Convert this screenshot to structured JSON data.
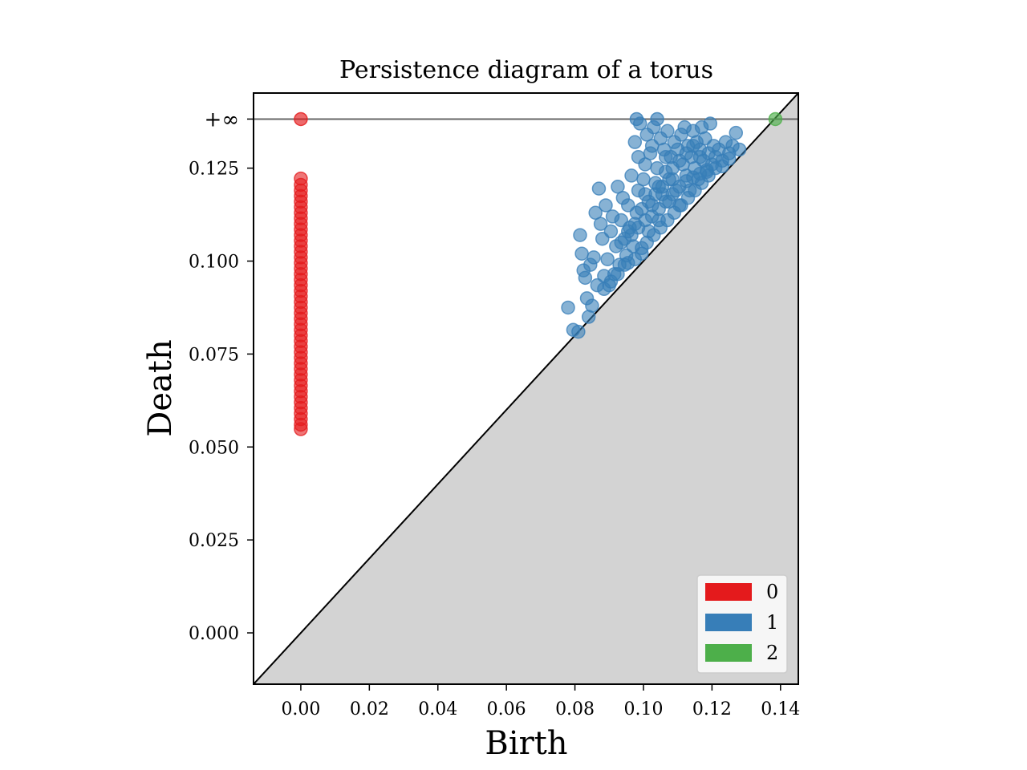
{
  "chart_data": {
    "type": "scatter",
    "title": "Persistence diagram of a torus",
    "xlabel": "Birth",
    "ylabel": "Death",
    "xlim": [
      -0.0138,
      0.1452
    ],
    "ylim": [
      -0.0138,
      0.1452
    ],
    "x_ticks": [
      0.0,
      0.02,
      0.04,
      0.06,
      0.08,
      0.1,
      0.12,
      0.14
    ],
    "x_tick_labels": [
      "0.00",
      "0.02",
      "0.04",
      "0.06",
      "0.08",
      "0.10",
      "0.12",
      "0.14"
    ],
    "y_ticks": [
      0.0,
      0.025,
      0.05,
      0.075,
      0.1,
      0.125
    ],
    "y_tick_labels": [
      "0.000",
      "0.025",
      "0.050",
      "0.075",
      "0.100",
      "0.125"
    ],
    "infinity_label": "+∞",
    "infinity_level": 0.1382,
    "diagonal": true,
    "grid": false,
    "legend_position": "bottom-right",
    "series": [
      {
        "name": "0",
        "color": "#e41a1c",
        "points": [
          [
            0.0,
            0.0548
          ],
          [
            0.0,
            0.056
          ],
          [
            0.0,
            0.0575
          ],
          [
            0.0,
            0.059
          ],
          [
            0.0,
            0.0605
          ],
          [
            0.0,
            0.062
          ],
          [
            0.0,
            0.0635
          ],
          [
            0.0,
            0.065
          ],
          [
            0.0,
            0.0665
          ],
          [
            0.0,
            0.068
          ],
          [
            0.0,
            0.0695
          ],
          [
            0.0,
            0.071
          ],
          [
            0.0,
            0.0725
          ],
          [
            0.0,
            0.074
          ],
          [
            0.0,
            0.0755
          ],
          [
            0.0,
            0.077
          ],
          [
            0.0,
            0.0785
          ],
          [
            0.0,
            0.08
          ],
          [
            0.0,
            0.0815
          ],
          [
            0.0,
            0.083
          ],
          [
            0.0,
            0.0845
          ],
          [
            0.0,
            0.086
          ],
          [
            0.0,
            0.0875
          ],
          [
            0.0,
            0.089
          ],
          [
            0.0,
            0.0905
          ],
          [
            0.0,
            0.092
          ],
          [
            0.0,
            0.0935
          ],
          [
            0.0,
            0.095
          ],
          [
            0.0,
            0.0965
          ],
          [
            0.0,
            0.098
          ],
          [
            0.0,
            0.0995
          ],
          [
            0.0,
            0.101
          ],
          [
            0.0,
            0.1025
          ],
          [
            0.0,
            0.104
          ],
          [
            0.0,
            0.1055
          ],
          [
            0.0,
            0.107
          ],
          [
            0.0,
            0.1085
          ],
          [
            0.0,
            0.11
          ],
          [
            0.0,
            0.1115
          ],
          [
            0.0,
            0.113
          ],
          [
            0.0,
            0.1145
          ],
          [
            0.0,
            0.116
          ],
          [
            0.0,
            0.1175
          ],
          [
            0.0,
            0.119
          ],
          [
            0.0,
            0.1205
          ],
          [
            0.0,
            0.1222
          ]
        ],
        "infinite_births": [
          0.0
        ]
      },
      {
        "name": "1",
        "color": "#377eb8",
        "points": [
          [
            0.078,
            0.0875
          ],
          [
            0.0795,
            0.0815
          ],
          [
            0.081,
            0.081
          ],
          [
            0.0815,
            0.107
          ],
          [
            0.082,
            0.102
          ],
          [
            0.0825,
            0.0975
          ],
          [
            0.083,
            0.0955
          ],
          [
            0.0835,
            0.09
          ],
          [
            0.084,
            0.085
          ],
          [
            0.0845,
            0.099
          ],
          [
            0.085,
            0.088
          ],
          [
            0.0855,
            0.101
          ],
          [
            0.086,
            0.113
          ],
          [
            0.0865,
            0.0935
          ],
          [
            0.087,
            0.1195
          ],
          [
            0.0875,
            0.11
          ],
          [
            0.088,
            0.106
          ],
          [
            0.0885,
            0.096
          ],
          [
            0.089,
            0.115
          ],
          [
            0.0895,
            0.1005
          ],
          [
            0.09,
            0.0935
          ],
          [
            0.0905,
            0.108
          ],
          [
            0.091,
            0.112
          ],
          [
            0.0915,
            0.0965
          ],
          [
            0.092,
            0.104
          ],
          [
            0.0925,
            0.12
          ],
          [
            0.093,
            0.099
          ],
          [
            0.0935,
            0.111
          ],
          [
            0.094,
            0.117
          ],
          [
            0.0945,
            0.106
          ],
          [
            0.095,
            0.1015
          ],
          [
            0.0955,
            0.115
          ],
          [
            0.096,
            0.109
          ],
          [
            0.0965,
            0.123
          ],
          [
            0.097,
            0.104
          ],
          [
            0.0975,
            0.132
          ],
          [
            0.098,
            0.113
          ],
          [
            0.0985,
            0.128
          ],
          [
            0.099,
            0.137
          ],
          [
            0.0995,
            0.102
          ],
          [
            0.1,
            0.122
          ],
          [
            0.1005,
            0.118
          ],
          [
            0.101,
            0.134
          ],
          [
            0.1015,
            0.108
          ],
          [
            0.102,
            0.129
          ],
          [
            0.1025,
            0.115
          ],
          [
            0.103,
            0.136
          ],
          [
            0.1035,
            0.121
          ],
          [
            0.104,
            0.125
          ],
          [
            0.1045,
            0.111
          ],
          [
            0.105,
            0.133
          ],
          [
            0.1055,
            0.118
          ],
          [
            0.106,
            0.13
          ],
          [
            0.1065,
            0.124
          ],
          [
            0.107,
            0.135
          ],
          [
            0.1075,
            0.116
          ],
          [
            0.108,
            0.128
          ],
          [
            0.1085,
            0.122
          ],
          [
            0.109,
            0.132
          ],
          [
            0.1095,
            0.119
          ],
          [
            0.11,
            0.13
          ],
          [
            0.1105,
            0.115
          ],
          [
            0.111,
            0.134
          ],
          [
            0.1115,
            0.126
          ],
          [
            0.112,
            0.136
          ],
          [
            0.1125,
            0.123
          ],
          [
            0.113,
            0.131
          ],
          [
            0.1135,
            0.119
          ],
          [
            0.114,
            0.128
          ],
          [
            0.1145,
            0.135
          ],
          [
            0.115,
            0.125
          ],
          [
            0.1155,
            0.132
          ],
          [
            0.116,
            0.122
          ],
          [
            0.1165,
            0.13
          ],
          [
            0.117,
            0.136
          ],
          [
            0.1175,
            0.127
          ],
          [
            0.118,
            0.133
          ],
          [
            0.1185,
            0.124
          ],
          [
            0.119,
            0.129
          ],
          [
            0.1195,
            0.137
          ],
          [
            0.12,
            0.126
          ],
          [
            0.1205,
            0.131
          ],
          [
            0.121,
            0.128
          ],
          [
            0.122,
            0.13
          ],
          [
            0.123,
            0.127
          ],
          [
            0.124,
            0.132
          ],
          [
            0.125,
            0.129
          ],
          [
            0.126,
            0.131
          ],
          [
            0.127,
            0.1345
          ],
          [
            0.128,
            0.13
          ],
          [
            0.0955,
            0.0995
          ],
          [
            0.0975,
            0.1005
          ],
          [
            0.0995,
            0.1035
          ],
          [
            0.101,
            0.105
          ],
          [
            0.103,
            0.107
          ],
          [
            0.105,
            0.109
          ],
          [
            0.107,
            0.111
          ],
          [
            0.109,
            0.113
          ],
          [
            0.111,
            0.115
          ],
          [
            0.113,
            0.117
          ],
          [
            0.115,
            0.119
          ],
          [
            0.117,
            0.121
          ],
          [
            0.119,
            0.123
          ],
          [
            0.121,
            0.125
          ],
          [
            0.123,
            0.1255
          ],
          [
            0.125,
            0.1275
          ],
          [
            0.0885,
            0.0925
          ],
          [
            0.0905,
            0.0945
          ],
          [
            0.0925,
            0.0965
          ],
          [
            0.0945,
            0.099
          ],
          [
            0.0965,
            0.107
          ],
          [
            0.0985,
            0.109
          ],
          [
            0.1005,
            0.111
          ],
          [
            0.1025,
            0.112
          ],
          [
            0.1045,
            0.114
          ],
          [
            0.1065,
            0.116
          ],
          [
            0.1085,
            0.118
          ],
          [
            0.1105,
            0.12
          ],
          [
            0.1125,
            0.1215
          ],
          [
            0.1145,
            0.1225
          ],
          [
            0.1165,
            0.1235
          ],
          [
            0.1185,
            0.1245
          ],
          [
            0.0985,
            0.119
          ],
          [
            0.1005,
            0.126
          ],
          [
            0.1025,
            0.131
          ],
          [
            0.1045,
            0.12
          ],
          [
            0.1065,
            0.128
          ],
          [
            0.1085,
            0.125
          ],
          [
            0.1105,
            0.127
          ],
          [
            0.1125,
            0.129
          ],
          [
            0.1145,
            0.131
          ],
          [
            0.1165,
            0.128
          ],
          [
            0.0935,
            0.105
          ],
          [
            0.0955,
            0.108
          ],
          [
            0.0975,
            0.11
          ],
          [
            0.0995,
            0.114
          ],
          [
            0.1015,
            0.116
          ],
          [
            0.1035,
            0.118
          ],
          [
            0.1055,
            0.12
          ],
          [
            0.1075,
            0.122
          ]
        ],
        "infinite_births": [
          0.098,
          0.104
        ]
      },
      {
        "name": "2",
        "color": "#4daf4a",
        "points": [],
        "infinite_births": [
          0.1385
        ]
      }
    ]
  }
}
